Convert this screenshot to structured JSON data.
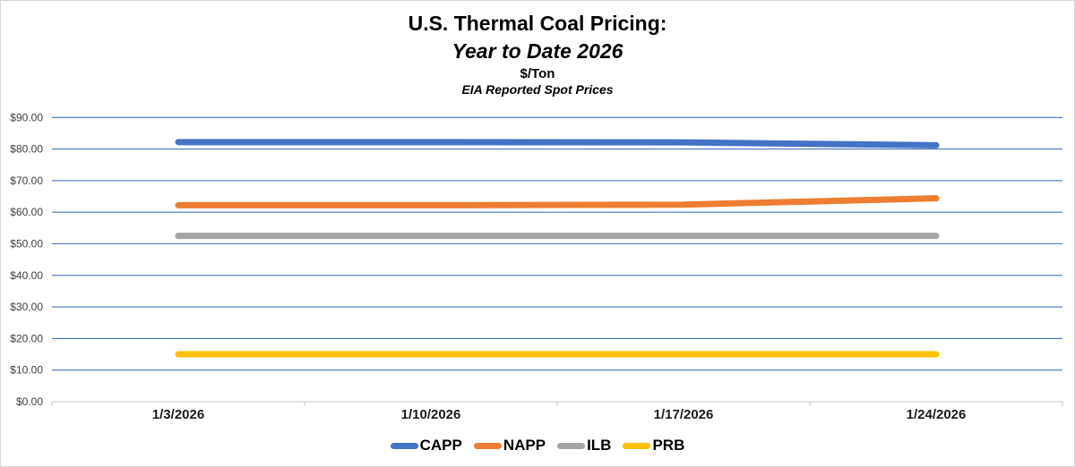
{
  "title": {
    "line1": "U.S. Thermal Coal Pricing:",
    "line2": "Year to Date 2026",
    "line3": "$/Ton",
    "line4": "EIA Reported Spot Prices"
  },
  "chart_data": {
    "type": "line",
    "title": "U.S. Thermal Coal Pricing: Year to Date 2026",
    "units_label": "$/Ton",
    "source_label": "EIA Reported Spot Prices",
    "x": [
      "1/3/2026",
      "1/10/2026",
      "1/17/2026",
      "1/24/2026"
    ],
    "series": [
      {
        "name": "CAPP",
        "color": "#4472C4",
        "values": [
          82.2,
          82.2,
          82.1,
          81.2
        ]
      },
      {
        "name": "NAPP",
        "color": "#ED7D31",
        "values": [
          62.2,
          62.2,
          62.4,
          64.4
        ]
      },
      {
        "name": "ILB",
        "color": "#A5A5A5",
        "values": [
          52.5,
          52.5,
          52.5,
          52.5
        ]
      },
      {
        "name": "PRB",
        "color": "#FFC000",
        "values": [
          15.0,
          15.0,
          15.0,
          15.0
        ]
      }
    ],
    "ylim": [
      0,
      90
    ],
    "ytick_step": 10,
    "ytick_labels": [
      "$0.00",
      "$10.00",
      "$20.00",
      "$30.00",
      "$40.00",
      "$50.00",
      "$60.00",
      "$70.00",
      "$80.00",
      "$90.00"
    ],
    "grid": true,
    "gridline_color": "#4472C4",
    "axis_line_color": "#D9D9D9",
    "tick_color": "#D0CECE",
    "y_label_color": "#404040",
    "x_label_color": "#1a1a1a",
    "legend_position": "bottom"
  }
}
